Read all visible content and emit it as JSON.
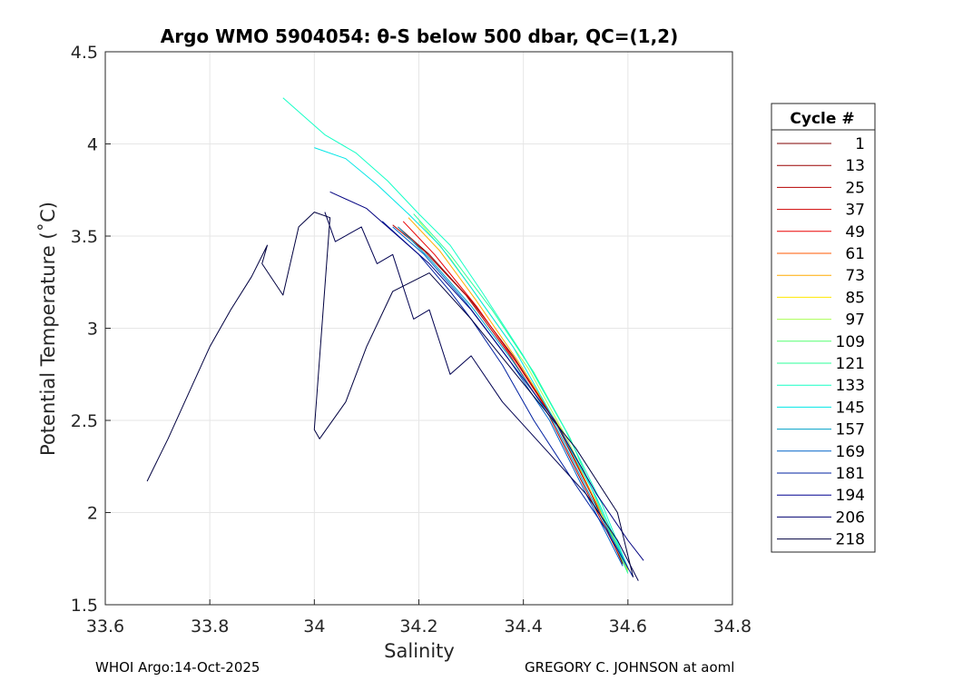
{
  "chart_data": {
    "type": "line",
    "title": "Argo WMO 5904054: θ-S below 500 dbar,  QC=(1,2)",
    "xlabel": "Salinity",
    "ylabel": "Potential Temperature (˚C)",
    "xlim": [
      33.6,
      34.8
    ],
    "ylim": [
      1.5,
      4.5
    ],
    "xticks": [
      "33.6",
      "33.8",
      "34",
      "34.2",
      "34.4",
      "34.6",
      "34.8"
    ],
    "yticks": [
      "1.5",
      "2",
      "2.5",
      "3",
      "3.5",
      "4",
      "4.5"
    ],
    "grid": true,
    "legend": {
      "title": "Cycle #",
      "position": "right-outside",
      "entries": [
        "1",
        "13",
        "25",
        "37",
        "49",
        "61",
        "73",
        "85",
        "97",
        "109",
        "121",
        "133",
        "145",
        "157",
        "169",
        "181",
        "194",
        "206",
        "218"
      ]
    },
    "series": [
      {
        "name": "1",
        "color": "#7f0000",
        "x": [
          34.16,
          34.22,
          34.3,
          34.38,
          34.46,
          34.53,
          34.59
        ],
        "y": [
          3.55,
          3.4,
          3.15,
          2.85,
          2.5,
          2.1,
          1.72
        ]
      },
      {
        "name": "25",
        "color": "#b40000",
        "x": [
          34.15,
          34.21,
          34.29,
          34.37,
          34.45,
          34.52,
          34.59
        ],
        "y": [
          3.56,
          3.42,
          3.18,
          2.87,
          2.52,
          2.12,
          1.73
        ]
      },
      {
        "name": "49",
        "color": "#ea0000",
        "x": [
          34.17,
          34.23,
          34.31,
          34.39,
          34.47,
          34.54,
          34.6
        ],
        "y": [
          3.58,
          3.4,
          3.12,
          2.8,
          2.45,
          2.05,
          1.7
        ]
      },
      {
        "name": "73",
        "color": "#ffaa00",
        "x": [
          34.18,
          34.24,
          34.31,
          34.39,
          34.47,
          34.54,
          34.6
        ],
        "y": [
          3.6,
          3.42,
          3.15,
          2.82,
          2.46,
          2.05,
          1.69
        ]
      },
      {
        "name": "97",
        "color": "#aaff55",
        "x": [
          34.2,
          34.26,
          34.33,
          34.41,
          34.48,
          34.55,
          34.6
        ],
        "y": [
          3.58,
          3.38,
          3.1,
          2.78,
          2.42,
          2.02,
          1.68
        ]
      },
      {
        "name": "121",
        "color": "#2bff9a",
        "x": [
          34.19,
          34.26,
          34.34,
          34.42,
          34.49,
          34.55,
          34.6
        ],
        "y": [
          3.62,
          3.4,
          3.1,
          2.76,
          2.4,
          2.0,
          1.67
        ]
      },
      {
        "name": "133",
        "color": "#16ffc6",
        "x": [
          33.94,
          34.02,
          34.08,
          34.14,
          34.2,
          34.26,
          34.32,
          34.4,
          34.48,
          34.55,
          34.6
        ],
        "y": [
          4.25,
          4.05,
          3.95,
          3.8,
          3.62,
          3.45,
          3.2,
          2.85,
          2.45,
          2.05,
          1.7
        ]
      },
      {
        "name": "145",
        "color": "#00e6e6",
        "x": [
          34.0,
          34.06,
          34.12,
          34.18,
          34.24,
          34.3,
          34.38,
          34.46,
          34.54,
          34.6
        ],
        "y": [
          3.98,
          3.92,
          3.78,
          3.62,
          3.45,
          3.22,
          2.9,
          2.5,
          2.08,
          1.7
        ]
      },
      {
        "name": "157",
        "color": "#00a0c8",
        "x": [
          34.16,
          34.22,
          34.3,
          34.38,
          34.46,
          34.53,
          34.6
        ],
        "y": [
          3.55,
          3.38,
          3.12,
          2.82,
          2.48,
          2.08,
          1.7
        ]
      },
      {
        "name": "169",
        "color": "#0064c8",
        "x": [
          34.15,
          34.21,
          34.29,
          34.37,
          34.45,
          34.52,
          34.59
        ],
        "y": [
          3.55,
          3.4,
          3.14,
          2.84,
          2.5,
          2.1,
          1.71
        ]
      },
      {
        "name": "181",
        "color": "#0020a0",
        "x": [
          34.13,
          34.2,
          34.26,
          34.3,
          34.36,
          34.42,
          34.5,
          34.56,
          34.61
        ],
        "y": [
          3.58,
          3.4,
          3.2,
          3.05,
          2.8,
          2.5,
          2.15,
          1.9,
          1.65
        ]
      },
      {
        "name": "194",
        "color": "#000080",
        "x": [
          34.03,
          34.1,
          34.16,
          34.22,
          34.3,
          34.38,
          34.46,
          34.54,
          34.6,
          34.63
        ],
        "y": [
          3.74,
          3.65,
          3.5,
          3.35,
          3.1,
          2.8,
          2.5,
          2.1,
          1.85,
          1.74
        ]
      },
      {
        "name": "206",
        "color": "#000050",
        "x": [
          34.02,
          34.04,
          34.09,
          34.12,
          34.15,
          34.19,
          34.22,
          34.26,
          34.3,
          34.36,
          34.44,
          34.52,
          34.58,
          34.62
        ],
        "y": [
          3.63,
          3.47,
          3.55,
          3.35,
          3.4,
          3.05,
          3.1,
          2.75,
          2.85,
          2.6,
          2.35,
          2.1,
          1.85,
          1.63
        ]
      },
      {
        "name": "218",
        "color": "#000040",
        "x": [
          33.68,
          33.72,
          33.76,
          33.8,
          33.84,
          33.88,
          33.91,
          33.9,
          33.94,
          33.97,
          34.0,
          34.03,
          34.0,
          34.01,
          34.06,
          34.1,
          34.15,
          34.22,
          34.3,
          34.4,
          34.5,
          34.58,
          34.61
        ],
        "y": [
          2.17,
          2.4,
          2.65,
          2.9,
          3.1,
          3.28,
          3.45,
          3.35,
          3.18,
          3.55,
          3.63,
          3.6,
          2.45,
          2.4,
          2.6,
          2.9,
          3.2,
          3.3,
          3.05,
          2.7,
          2.35,
          2.0,
          1.65
        ]
      }
    ]
  },
  "footer": {
    "left": "WHOI Argo:14-Oct-2025",
    "right": "GREGORY C. JOHNSON at aoml"
  },
  "legend_colors": [
    "#7f0000",
    "#9a0000",
    "#b40000",
    "#cf0000",
    "#ea0000",
    "#ff5a00",
    "#ffaa00",
    "#ffe800",
    "#aaff55",
    "#55ff70",
    "#2bff9a",
    "#16ffc6",
    "#00e6e6",
    "#00a0c8",
    "#0064c8",
    "#0020a0",
    "#000090",
    "#000070",
    "#000040"
  ]
}
